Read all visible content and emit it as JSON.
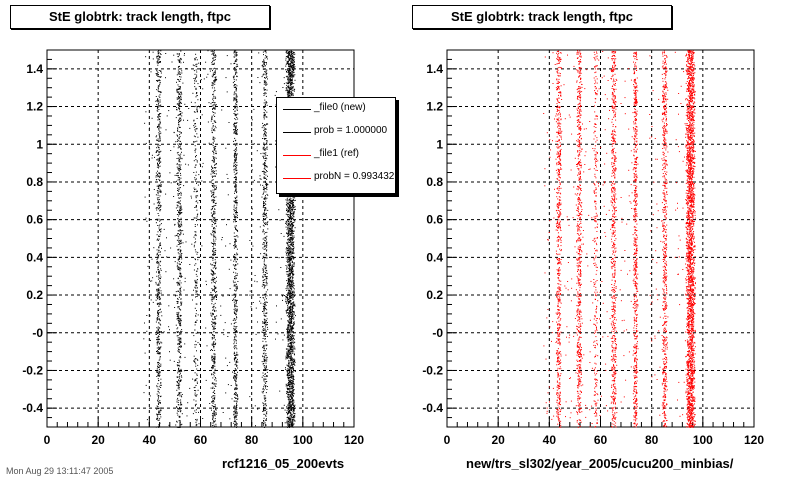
{
  "footer": "Mon Aug 29 13:11:47 2005",
  "chart_data": [
    {
      "type": "scatter",
      "title": "StE globtrk: track length, ftpc",
      "xlabel": "rcf1216_05_200evts",
      "ylabel": "",
      "xlim": [
        0,
        120
      ],
      "ylim": [
        -0.5,
        1.5
      ],
      "x_ticks": [
        "0",
        "20",
        "40",
        "60",
        "80",
        "100",
        "120"
      ],
      "y_ticks": [
        "-0.4",
        "-0.2",
        "-0",
        "0.2",
        "0.4",
        "0.6",
        "0.8",
        "1",
        "1.2",
        "1.4"
      ],
      "grid": true,
      "point_color": "#000000",
      "bands": [
        {
          "x": 43.5,
          "width": 1.2,
          "density": "medium"
        },
        {
          "x": 51.5,
          "width": 1.2,
          "density": "medium"
        },
        {
          "x": 58.0,
          "width": 1.0,
          "density": "low"
        },
        {
          "x": 65.0,
          "width": 1.2,
          "density": "medium"
        },
        {
          "x": 73.5,
          "width": 1.0,
          "density": "medium"
        },
        {
          "x": 85.0,
          "width": 1.2,
          "density": "medium"
        },
        {
          "x": 95.0,
          "width": 2.0,
          "density": "high"
        }
      ],
      "legend": {
        "placement": "top-right",
        "entries": [
          {
            "label": "_file0 (new)",
            "color": "#000000"
          },
          {
            "label": "prob = 1.000000",
            "color": "#000000"
          },
          {
            "label": "_file1 (ref)",
            "color": "#ff0000"
          },
          {
            "label": "probN = 0.993432",
            "color": "#ff0000"
          }
        ]
      }
    },
    {
      "type": "scatter",
      "title": "StE globtrk: track length, ftpc",
      "xlabel": "new/trs_sl302/year_2005/cucu200_minbias/",
      "ylabel": "",
      "xlim": [
        0,
        120
      ],
      "ylim": [
        -0.5,
        1.5
      ],
      "x_ticks": [
        "0",
        "20",
        "40",
        "60",
        "80",
        "100",
        "120"
      ],
      "y_ticks": [
        "-0.4",
        "-0.2",
        "-0",
        "0.2",
        "0.4",
        "0.6",
        "0.8",
        "1",
        "1.2",
        "1.4"
      ],
      "grid": true,
      "point_color": "#ff0000",
      "bands": [
        {
          "x": 43.5,
          "width": 1.2,
          "density": "medium"
        },
        {
          "x": 51.5,
          "width": 1.2,
          "density": "medium"
        },
        {
          "x": 58.0,
          "width": 1.0,
          "density": "low"
        },
        {
          "x": 65.0,
          "width": 1.2,
          "density": "medium"
        },
        {
          "x": 73.5,
          "width": 1.0,
          "density": "medium"
        },
        {
          "x": 85.0,
          "width": 1.2,
          "density": "medium"
        },
        {
          "x": 95.0,
          "width": 2.0,
          "density": "high"
        }
      ]
    }
  ]
}
